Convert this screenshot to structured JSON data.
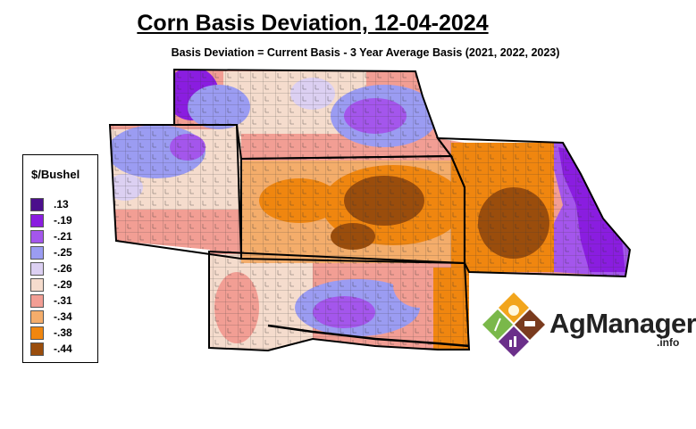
{
  "title": "Corn Basis Deviation, 12-04-2024",
  "subtitle": "Basis Deviation = Current Basis - 3 Year Average Basis (2021, 2022, 2023)",
  "legend": {
    "title": "$/Bushel",
    "items": [
      {
        "label": ".13",
        "color": "#4b0f8c"
      },
      {
        "label": "-.19",
        "color": "#8a1de0"
      },
      {
        "label": "-.21",
        "color": "#a456ec"
      },
      {
        "label": "-.25",
        "color": "#9b9cf2"
      },
      {
        "label": "-.26",
        "color": "#dcd0f2"
      },
      {
        "label": "-.29",
        "color": "#f5dccd"
      },
      {
        "label": "-.31",
        "color": "#f29e94"
      },
      {
        "label": "-.34",
        "color": "#f4ad6b"
      },
      {
        "label": "-.38",
        "color": "#f0860f"
      },
      {
        "label": "-.44",
        "color": "#9a4d0c"
      }
    ]
  },
  "logo": {
    "name": "AgManager",
    "suffix": ".info"
  }
}
